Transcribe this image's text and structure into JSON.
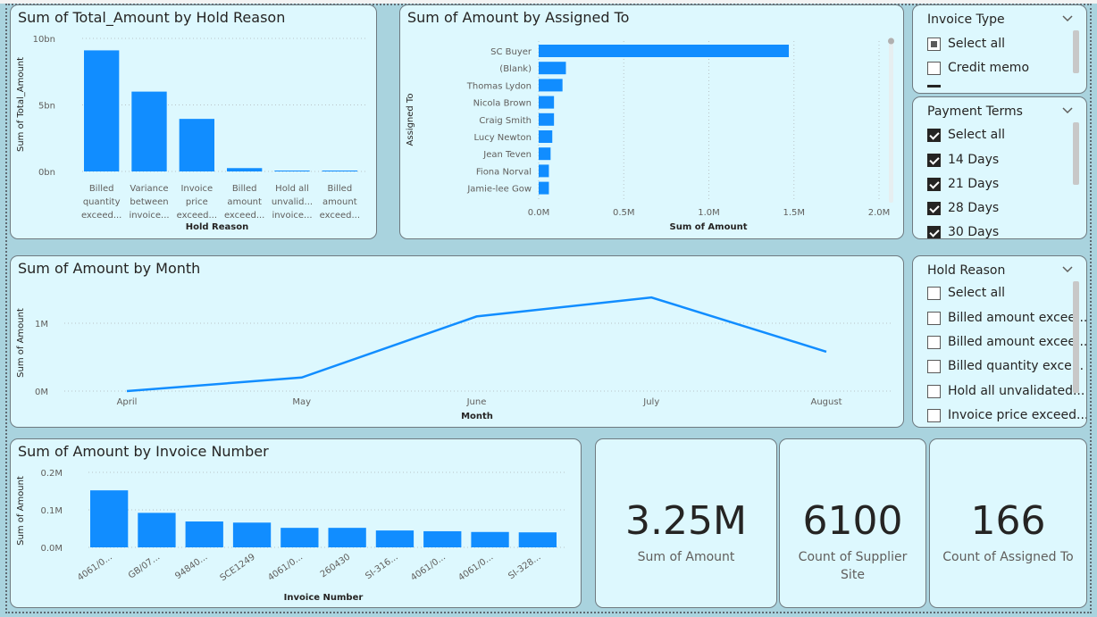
{
  "charts": {
    "hold_reason": {
      "title": "Sum of Total_Amount by Hold Reason",
      "ylabel": "Sum of Total_Amount",
      "xlabel": "Hold Reason",
      "yticks": [
        "10bn",
        "5bn",
        "0bn"
      ],
      "categories": [
        [
          "Billed",
          "quantity",
          "exceed..."
        ],
        [
          "Variance",
          "between",
          "invoice..."
        ],
        [
          "Invoice",
          "price",
          "exceed..."
        ],
        [
          "Billed",
          "amount",
          "exceed..."
        ],
        [
          "Hold all",
          "unvalid...",
          "invoice..."
        ],
        [
          "Billed",
          "amount",
          "exceed..."
        ]
      ]
    },
    "assigned_to": {
      "title": "Sum of Amount by Assigned To",
      "ylabel": "Assigned To",
      "xlabel": "Sum of Amount",
      "xticks": [
        "0.0M",
        "0.5M",
        "1.0M",
        "1.5M",
        "2.0M"
      ],
      "categories": [
        "SC Buyer",
        "(Blank)",
        "Thomas Lydon",
        "Nicola Brown",
        "Craig Smith",
        "Lucy Newton",
        "Jean Teven",
        "Fiona Norval",
        "Jamie-lee Gow"
      ]
    },
    "month": {
      "title": "Sum of Amount by Month",
      "ylabel": "Sum of Amount",
      "xlabel": "Month",
      "yticks": [
        "1M",
        "0M"
      ],
      "categories": [
        "April",
        "May",
        "June",
        "July",
        "August"
      ]
    },
    "invoice": {
      "title": "Sum of Amount by Invoice Number",
      "ylabel": "Sum of Amount",
      "xlabel": "Invoice Number",
      "yticks": [
        "0.2M",
        "0.1M",
        "0.0M"
      ],
      "categories": [
        "4061/0...",
        "GB/07...",
        "94840...",
        "SCE1249",
        "4061/0...",
        "260430",
        "SI-316...",
        "4061/0...",
        "4061/0...",
        "SI-328..."
      ]
    }
  },
  "chart_data": [
    {
      "type": "bar",
      "title": "Sum of Total_Amount by Hold Reason",
      "xlabel": "Hold Reason",
      "ylabel": "Sum of Total_Amount",
      "ylim": [
        0,
        10
      ],
      "categories": [
        "Billed quantity exceed...",
        "Variance between invoice...",
        "Invoice price exceed...",
        "Billed amount exceed...",
        "Hold all unvalid... invoice...",
        "Billed amount exceed..."
      ],
      "values": [
        9.1,
        6.0,
        3.95,
        0.25,
        0.05,
        0.03
      ]
    },
    {
      "type": "bar",
      "orientation": "horizontal",
      "title": "Sum of Amount by Assigned To",
      "xlabel": "Sum of Amount",
      "ylabel": "Assigned To",
      "xlim": [
        0,
        2.0
      ],
      "categories": [
        "SC Buyer",
        "(Blank)",
        "Thomas Lydon",
        "Nicola Brown",
        "Craig Smith",
        "Lucy Newton",
        "Jean Teven",
        "Fiona Norval",
        "Jamie-lee Gow"
      ],
      "values": [
        1.47,
        0.16,
        0.14,
        0.09,
        0.09,
        0.08,
        0.07,
        0.06,
        0.06
      ]
    },
    {
      "type": "line",
      "title": "Sum of Amount by Month",
      "xlabel": "Month",
      "ylabel": "Sum of Amount",
      "ylim": [
        0,
        1.3
      ],
      "categories": [
        "April",
        "May",
        "June",
        "July",
        "August"
      ],
      "values": [
        0.0,
        0.2,
        1.1,
        1.38,
        0.58
      ]
    },
    {
      "type": "bar",
      "title": "Sum of Amount by Invoice Number",
      "xlabel": "Invoice Number",
      "ylabel": "Sum of Amount",
      "ylim": [
        0,
        0.2
      ],
      "categories": [
        "4061/0...",
        "GB/07...",
        "94840...",
        "SCE1249",
        "4061/0...",
        "260430",
        "SI-316...",
        "4061/0...",
        "4061/0...",
        "SI-328..."
      ],
      "values": [
        0.152,
        0.092,
        0.069,
        0.066,
        0.052,
        0.052,
        0.045,
        0.043,
        0.041,
        0.04
      ]
    }
  ],
  "slicers": {
    "invoice_type": {
      "title": "Invoice Type",
      "items": [
        {
          "label": "Select all",
          "state": "partial"
        },
        {
          "label": "Credit memo",
          "state": "unchecked"
        }
      ]
    },
    "payment_terms": {
      "title": "Payment Terms",
      "items": [
        {
          "label": "Select all",
          "state": "checked"
        },
        {
          "label": "14 Days",
          "state": "checked"
        },
        {
          "label": "21 Days",
          "state": "checked"
        },
        {
          "label": "28 Days",
          "state": "checked"
        },
        {
          "label": "30 Days",
          "state": "checked"
        }
      ]
    },
    "hold_reason": {
      "title": "Hold Reason",
      "items": [
        {
          "label": "Select all",
          "state": "unchecked"
        },
        {
          "label": "Billed amount excee...",
          "state": "unchecked"
        },
        {
          "label": "Billed amount excee...",
          "state": "unchecked"
        },
        {
          "label": "Billed quantity exce...",
          "state": "unchecked"
        },
        {
          "label": "Hold all unvalidated...",
          "state": "unchecked"
        },
        {
          "label": "Invoice price exceed...",
          "state": "unchecked"
        }
      ]
    }
  },
  "kpis": {
    "sum_amount": {
      "value": "3.25M",
      "label": "Sum of Amount"
    },
    "count_supplier_site": {
      "value": "6100",
      "label": "Count of Supplier Site"
    },
    "count_assigned_to": {
      "value": "166",
      "label": "Count of Assigned To"
    }
  },
  "colors": {
    "bar": "#118dff",
    "card_bg": "#ddf8fe",
    "page_bg": "#a9d3de"
  }
}
